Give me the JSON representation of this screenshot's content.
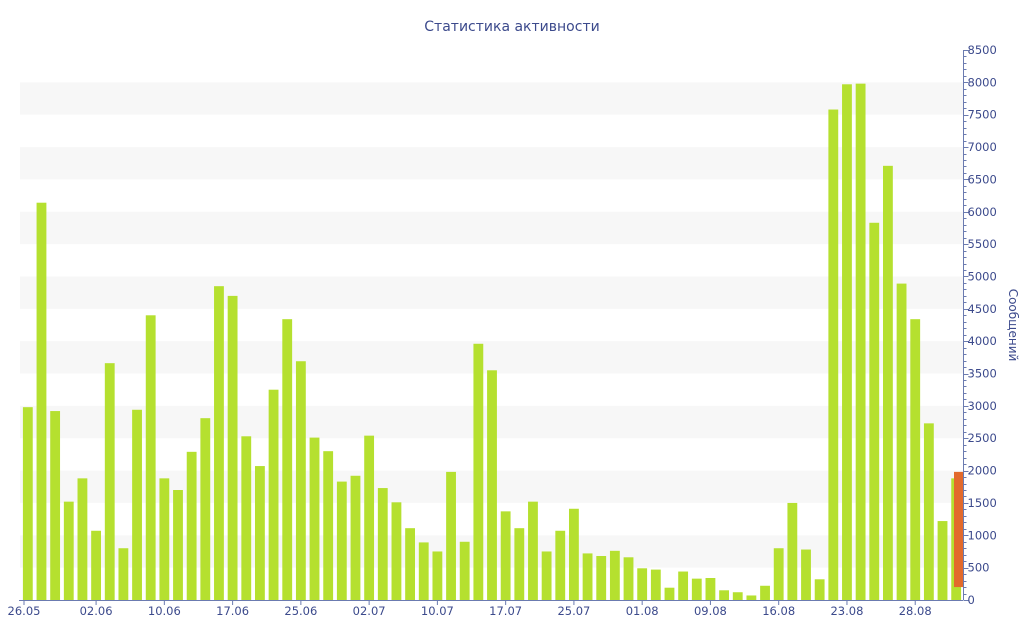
{
  "chart_data": {
    "type": "bar",
    "title": "Статистика активности",
    "ylabel": "Сообщений",
    "xlabel": "",
    "ylim": [
      0,
      8500
    ],
    "y_ticks": [
      0,
      500,
      1000,
      1500,
      2000,
      2500,
      3000,
      3500,
      4000,
      4500,
      5000,
      5500,
      6000,
      6500,
      7000,
      7500,
      8000,
      8500
    ],
    "x_ticks": [
      {
        "label": "26.05",
        "index": 0
      },
      {
        "label": "02.06",
        "index": 5
      },
      {
        "label": "10.06",
        "index": 10
      },
      {
        "label": "17.06",
        "index": 15
      },
      {
        "label": "25.06",
        "index": 20
      },
      {
        "label": "02.07",
        "index": 25
      },
      {
        "label": "10.07",
        "index": 30
      },
      {
        "label": "17.07",
        "index": 35
      },
      {
        "label": "25.07",
        "index": 40
      },
      {
        "label": "01.08",
        "index": 45
      },
      {
        "label": "09.08",
        "index": 50
      },
      {
        "label": "16.08",
        "index": 55
      },
      {
        "label": "23.08",
        "index": 60
      },
      {
        "label": "28.08",
        "index": 65
      }
    ],
    "y_axis_position": "right",
    "grid": "alternating horizontal bands",
    "values": [
      2980,
      6140,
      2920,
      1520,
      1880,
      1070,
      3660,
      800,
      2940,
      4400,
      1880,
      1700,
      2290,
      2810,
      4850,
      4700,
      2530,
      2070,
      3250,
      4340,
      3690,
      2510,
      2300,
      1830,
      1920,
      2540,
      1730,
      1510,
      1110,
      890,
      750,
      1980,
      900,
      3960,
      3550,
      1370,
      1110,
      1520,
      750,
      1070,
      1410,
      720,
      680,
      760,
      660,
      490,
      470,
      190,
      440,
      330,
      340,
      150,
      120,
      70,
      220,
      800,
      1500,
      780,
      320,
      7580,
      7970,
      7980,
      5830,
      6710,
      4890,
      4340,
      2730,
      1220,
      1880
    ],
    "current": {
      "from": 200,
      "to": 1980
    },
    "colors": {
      "bar": "#b5e02f",
      "current": "#e26a2c",
      "text": "#3c4a8c",
      "band": "#f7f7f7",
      "axis": "#6b7bb0"
    }
  }
}
